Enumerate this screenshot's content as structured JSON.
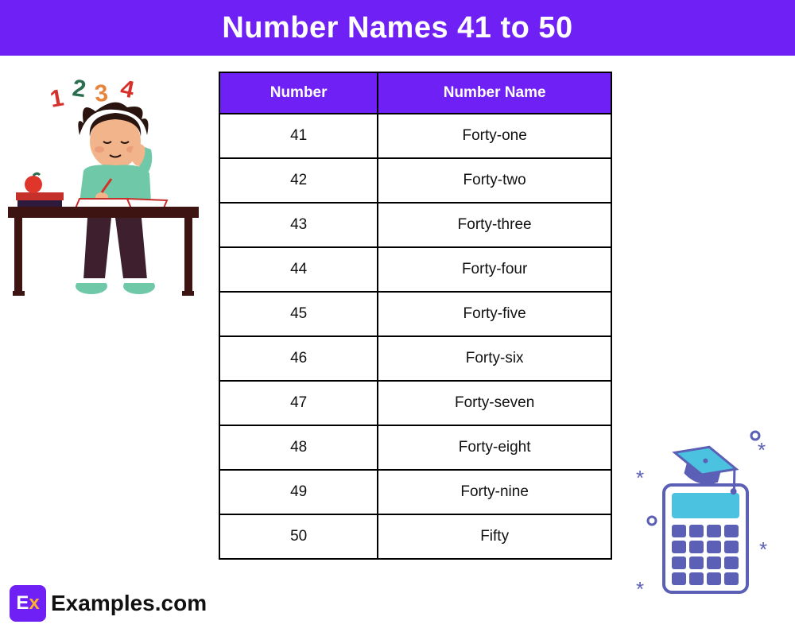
{
  "header": {
    "title": "Number Names 41 to 50",
    "bg_color": "#6f21f5",
    "text_color": "#ffffff"
  },
  "table": {
    "header_bg": "#6f21f5",
    "header_text_color": "#ffffff",
    "border_color": "#000000",
    "cell_bg": "#ffffff",
    "cell_text_color": "#111111",
    "columns": [
      "Number",
      "Number Name"
    ],
    "rows": [
      [
        "41",
        "Forty-one"
      ],
      [
        "42",
        "Forty-two"
      ],
      [
        "43",
        "Forty-three"
      ],
      [
        "44",
        "Forty-four"
      ],
      [
        "45",
        "Forty-five"
      ],
      [
        "46",
        "Forty-six"
      ],
      [
        "47",
        "Forty-seven"
      ],
      [
        "48",
        "Forty-eight"
      ],
      [
        "49",
        "Forty-nine"
      ],
      [
        "50",
        "Fifty"
      ]
    ]
  },
  "illustrations": {
    "student": {
      "desk_color": "#3e1412",
      "shirt_color": "#6fc9a8",
      "pants_color": "#3d1f2e",
      "hair_color": "#2a1410",
      "skin_color": "#f2b48a",
      "book_colors": [
        "#2e1a3d",
        "#c6302b"
      ],
      "apple_color": "#e0352b",
      "floating_numbers": [
        {
          "n": "1",
          "color": "#d6302b"
        },
        {
          "n": "2",
          "color": "#2a6e4f"
        },
        {
          "n": "3",
          "color": "#e7843a"
        },
        {
          "n": "4",
          "color": "#d6302b"
        }
      ]
    },
    "calculator": {
      "body_color": "#5b5fb5",
      "screen_color": "#4bc2e0",
      "button_color": "#5b5fb5",
      "cap_color": "#4bc2e0",
      "cap_band_color": "#5b5fb5",
      "sparkle_color": "#5b5fb5"
    }
  },
  "logo": {
    "box_bg": "#6f21f5",
    "e": "E",
    "x": "x",
    "text": "Examples.com"
  }
}
